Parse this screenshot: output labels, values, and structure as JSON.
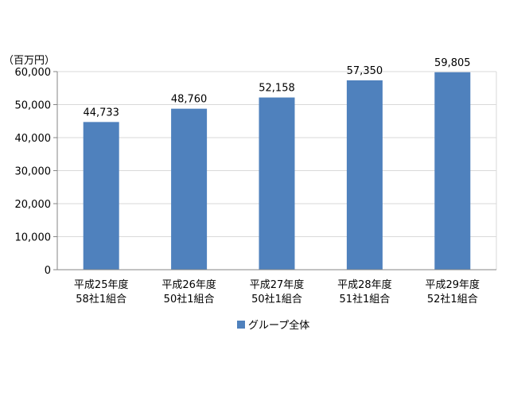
{
  "chart_data": {
    "type": "bar",
    "unit_label": "（百万円）",
    "categories": [
      [
        "平成25年度",
        "58社1組合"
      ],
      [
        "平成26年度",
        "50社1組合"
      ],
      [
        "平成27年度",
        "50社1組合"
      ],
      [
        "平成28年度",
        "51社1組合"
      ],
      [
        "平成29年度",
        "52社1組合"
      ]
    ],
    "series": [
      {
        "name": "グループ全体",
        "color": "#4f81bd",
        "values": [
          44733,
          48760,
          52158,
          57350,
          59805
        ],
        "labels": [
          "44,733",
          "48,760",
          "52,158",
          "57,350",
          "59,805"
        ]
      }
    ],
    "ylim": [
      0,
      60000
    ],
    "yticks": [
      0,
      10000,
      20000,
      30000,
      40000,
      50000,
      60000
    ],
    "ytick_labels": [
      "0",
      "10,000",
      "20,000",
      "30,000",
      "40,000",
      "50,000",
      "60,000"
    ],
    "grid": true,
    "legend": "bottom"
  }
}
